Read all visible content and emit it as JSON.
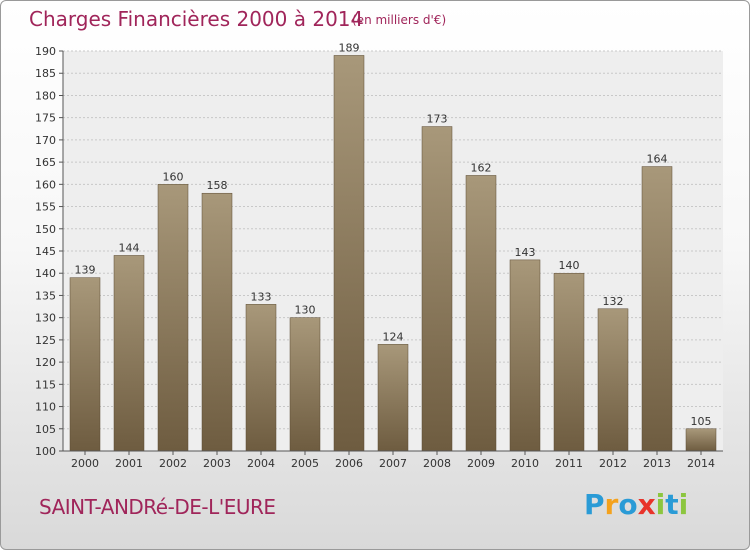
{
  "header": {
    "title": "Charges Financières 2000 à 2014",
    "subtitle": "(en milliers d'€)"
  },
  "footer": {
    "commune": "SAINT-ANDRé-DE-L'EURE",
    "logo_letters": [
      "P",
      "r",
      "o",
      "x",
      "i",
      "t",
      "i"
    ],
    "logo_colors": [
      "#2a9bd6",
      "#f4a21d",
      "#2a9bd6",
      "#e8332a",
      "#8cc63f",
      "#2a9bd6",
      "#8cc63f"
    ]
  },
  "chart_data": {
    "type": "bar",
    "title": "Charges Financières 2000 à 2014",
    "subtitle": "(en milliers d'€)",
    "categories": [
      "2000",
      "2001",
      "2002",
      "2003",
      "2004",
      "2005",
      "2006",
      "2007",
      "2008",
      "2009",
      "2010",
      "2011",
      "2012",
      "2013",
      "2014"
    ],
    "values": [
      139,
      144,
      160,
      158,
      133,
      130,
      189,
      124,
      173,
      162,
      143,
      140,
      132,
      164,
      105
    ],
    "ylim": [
      100,
      190
    ],
    "ytick_step": 5,
    "grid": true,
    "data_labels": true,
    "bar_color_top": "#a8987a",
    "bar_color_bottom": "#6e5c40",
    "title_color": "#a0255a"
  }
}
